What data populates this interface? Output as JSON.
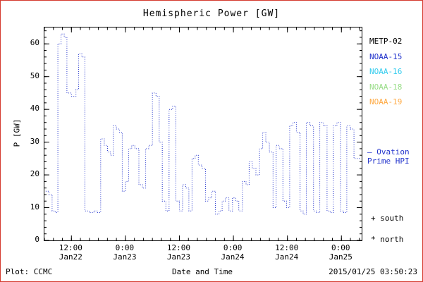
{
  "page": {
    "footer_left": "Plot: CCMC",
    "footer_right": "2015/01/25 03:50:23"
  },
  "chart_data": {
    "type": "line",
    "title": "Hemispheric Power [GW]",
    "xlabel": "Date and Time",
    "ylabel": "P [GW]",
    "xlim": [
      6,
      76.5
    ],
    "ylim": [
      0,
      65
    ],
    "grid": false,
    "line_style": "dotted-step",
    "legend_position": "right",
    "yticks": [
      0,
      10,
      20,
      30,
      40,
      50,
      60
    ],
    "xticks": [
      {
        "hour": 12,
        "time": "12:00",
        "date": "Jan22"
      },
      {
        "hour": 24,
        "time": "0:00",
        "date": "Jan23"
      },
      {
        "hour": 36,
        "time": "12:00",
        "date": "Jan23"
      },
      {
        "hour": 48,
        "time": "0:00",
        "date": "Jan24"
      },
      {
        "hour": 60,
        "time": "12:00",
        "date": "Jan24"
      },
      {
        "hour": 72,
        "time": "0:00",
        "date": "Jan25"
      }
    ],
    "legend": [
      {
        "label": "METP-02",
        "color": "#000000"
      },
      {
        "label": "NOAA-15",
        "color": "#2233cc"
      },
      {
        "label": "NOAA-16",
        "color": "#33ccee"
      },
      {
        "label": "NOAA-18",
        "color": "#99dd88"
      },
      {
        "label": "NOAA-19",
        "color": "#ffaa44"
      }
    ],
    "annotations": {
      "ovation_line1": "— Ovation",
      "ovation_line2": "Prime HPI",
      "ovation_color": "#2233cc",
      "south_marker": "+ south",
      "north_marker": "* north"
    },
    "series": [
      {
        "name": "Ovation Prime HPI",
        "color": "#2233cc",
        "units": "GW",
        "points": [
          [
            6.3,
            15
          ],
          [
            7.0,
            14
          ],
          [
            7.7,
            9
          ],
          [
            8.4,
            8.5
          ],
          [
            9.0,
            60
          ],
          [
            9.7,
            63
          ],
          [
            10.4,
            62
          ],
          [
            11.0,
            45
          ],
          [
            12.0,
            44
          ],
          [
            13.0,
            46
          ],
          [
            13.6,
            57
          ],
          [
            14.3,
            56
          ],
          [
            15.0,
            9
          ],
          [
            16.0,
            8.5
          ],
          [
            17.0,
            9
          ],
          [
            17.8,
            8.5
          ],
          [
            18.5,
            31
          ],
          [
            19.3,
            29
          ],
          [
            20.0,
            27
          ],
          [
            20.7,
            26
          ],
          [
            21.3,
            35
          ],
          [
            22.0,
            34
          ],
          [
            22.7,
            33
          ],
          [
            23.3,
            15
          ],
          [
            24.0,
            18
          ],
          [
            24.7,
            28
          ],
          [
            25.4,
            29
          ],
          [
            26.1,
            28
          ],
          [
            27.0,
            17
          ],
          [
            27.8,
            16
          ],
          [
            28.5,
            28
          ],
          [
            29.2,
            29
          ],
          [
            30.0,
            45
          ],
          [
            30.8,
            44
          ],
          [
            31.5,
            30
          ],
          [
            32.2,
            12
          ],
          [
            33.0,
            9
          ],
          [
            33.7,
            40
          ],
          [
            34.5,
            41
          ],
          [
            35.2,
            12
          ],
          [
            36.0,
            9
          ],
          [
            36.7,
            17
          ],
          [
            37.4,
            16
          ],
          [
            38.1,
            9
          ],
          [
            38.8,
            25
          ],
          [
            39.5,
            26
          ],
          [
            40.2,
            23
          ],
          [
            41.0,
            22
          ],
          [
            41.8,
            12
          ],
          [
            42.5,
            13
          ],
          [
            43.2,
            15
          ],
          [
            44.0,
            8
          ],
          [
            44.8,
            9
          ],
          [
            45.5,
            12
          ],
          [
            46.2,
            13
          ],
          [
            47.0,
            9
          ],
          [
            47.8,
            13
          ],
          [
            48.5,
            12
          ],
          [
            49.2,
            9
          ],
          [
            50.0,
            18
          ],
          [
            50.8,
            17
          ],
          [
            51.5,
            24
          ],
          [
            52.2,
            22
          ],
          [
            53.0,
            20
          ],
          [
            53.8,
            28
          ],
          [
            54.5,
            33
          ],
          [
            55.2,
            30
          ],
          [
            56.0,
            27
          ],
          [
            56.8,
            10
          ],
          [
            57.5,
            29
          ],
          [
            58.2,
            28
          ],
          [
            59.0,
            12
          ],
          [
            59.8,
            10
          ],
          [
            60.5,
            35
          ],
          [
            61.2,
            36
          ],
          [
            62.0,
            33
          ],
          [
            62.8,
            9
          ],
          [
            63.5,
            8
          ],
          [
            64.2,
            36
          ],
          [
            65.0,
            35
          ],
          [
            65.8,
            9
          ],
          [
            66.5,
            8.5
          ],
          [
            67.2,
            36
          ],
          [
            68.0,
            35
          ],
          [
            68.8,
            9
          ],
          [
            69.5,
            8.5
          ],
          [
            70.2,
            35
          ],
          [
            71.0,
            36
          ],
          [
            71.8,
            9
          ],
          [
            72.5,
            8.5
          ],
          [
            73.2,
            35
          ],
          [
            74.0,
            34
          ],
          [
            74.8,
            25
          ],
          [
            76.3,
            25
          ]
        ]
      }
    ]
  }
}
